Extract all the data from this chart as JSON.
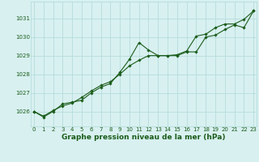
{
  "title": "Graphe pression niveau de la mer (hPa)",
  "x_hours": [
    0,
    1,
    2,
    3,
    4,
    5,
    6,
    7,
    8,
    9,
    10,
    11,
    12,
    13,
    14,
    15,
    16,
    17,
    18,
    19,
    20,
    21,
    22,
    23
  ],
  "series1": [
    1026.0,
    1025.7,
    1026.0,
    1026.4,
    1026.5,
    1026.6,
    1027.0,
    1027.3,
    1027.5,
    1028.1,
    1028.8,
    1029.7,
    1029.3,
    1029.0,
    1029.0,
    1029.0,
    1029.2,
    1029.2,
    1030.0,
    1030.1,
    1030.4,
    1030.65,
    1030.5,
    1031.4
  ],
  "series2": [
    1026.0,
    1025.75,
    1026.05,
    1026.3,
    1026.45,
    1026.75,
    1027.1,
    1027.4,
    1027.6,
    1028.0,
    1028.45,
    1028.75,
    1029.0,
    1029.0,
    1029.0,
    1029.05,
    1029.25,
    1030.05,
    1030.15,
    1030.5,
    1030.7,
    1030.7,
    1030.95,
    1031.4
  ],
  "line_color": "#1a5c1a",
  "marker_color": "#1a5c1a",
  "bg_color": "#d8f0f0",
  "grid_color": "#b0d8d8",
  "label_color": "#1a5c1a",
  "ylim_min": 1025.2,
  "ylim_max": 1031.9,
  "xlim_min": -0.3,
  "xlim_max": 23.3,
  "ytick_values": [
    1026,
    1027,
    1028,
    1029,
    1030,
    1031
  ],
  "xtick_values": [
    0,
    1,
    2,
    3,
    4,
    5,
    6,
    7,
    8,
    9,
    10,
    11,
    12,
    13,
    14,
    15,
    16,
    17,
    18,
    19,
    20,
    21,
    22,
    23
  ],
  "title_fontsize": 6.5,
  "tick_fontsize": 5.0
}
